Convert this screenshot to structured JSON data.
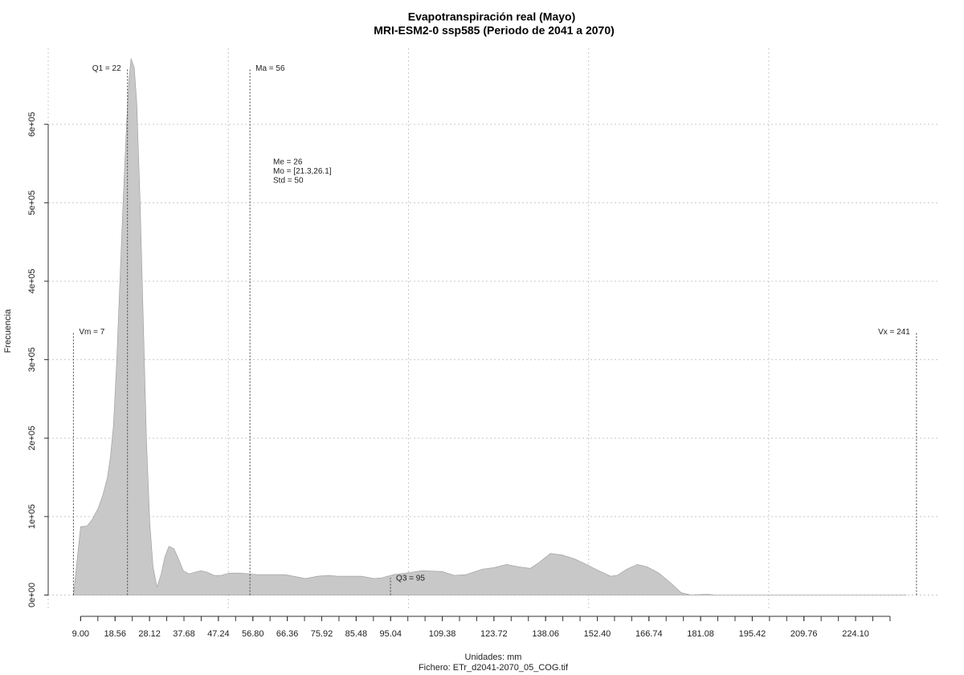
{
  "chart_data": {
    "type": "area",
    "title": "Evapotranspiración real (Mayo)",
    "subtitle": "MRI-ESM2-0 ssp585 (Periodo de 2041 a 2070)",
    "xlabel": "Unidades: mm",
    "caption": "Fichero: ETr_d2041-2070_05_COG.tif",
    "ylabel": "Frecuencia",
    "color": "#c8c8c8",
    "x": [
      7,
      9,
      10.8,
      12.3,
      13.9,
      15.2,
      16.4,
      17.2,
      18.1,
      19.0,
      19.9,
      20.8,
      21.7,
      22.4,
      23.0,
      23.9,
      24.6,
      25.5,
      26.4,
      27.3,
      28.2,
      29.1,
      30.2,
      31.3,
      32.4,
      33.5,
      34.9,
      36.2,
      37.5,
      39.1,
      40.7,
      42.4,
      44.2,
      46.0,
      48.0,
      50.2,
      53.6,
      58.1,
      65.8,
      69.2,
      71.4,
      74.8,
      77.7,
      80.3,
      87.0,
      90.4,
      92.6,
      95.9,
      99.3,
      103.7,
      109.3,
      112.7,
      116.0,
      120.5,
      123.8,
      127.2,
      130.5,
      133.8,
      136.1,
      139.4,
      142.7,
      146.1,
      149.4,
      152.8,
      156.1,
      157.9,
      160.6,
      163.5,
      166.2,
      169.5,
      172.9,
      175.7,
      178.4,
      182.9,
      185.1,
      238.2
    ],
    "values": [
      0,
      87000,
      88000,
      97000,
      111000,
      128000,
      149000,
      174000,
      215000,
      297000,
      400000,
      503000,
      595000,
      656000,
      684000,
      672000,
      626000,
      503000,
      349000,
      195000,
      92000,
      36000,
      10000,
      26000,
      49000,
      62000,
      59000,
      46000,
      31000,
      27000,
      29000,
      31000,
      29000,
      25000,
      25000,
      28000,
      28000,
      26000,
      26000,
      23000,
      21000,
      24000,
      25000,
      24000,
      24000,
      21000,
      22000,
      26000,
      28000,
      31000,
      30000,
      25000,
      26000,
      33000,
      35000,
      39000,
      36000,
      34000,
      41000,
      53000,
      51000,
      46000,
      39000,
      31000,
      24000,
      25000,
      33000,
      39000,
      36000,
      28000,
      15000,
      3000,
      0,
      1000,
      0,
      0
    ],
    "xlim": [
      0,
      247.5
    ],
    "ylim": [
      -20000,
      697000
    ],
    "yticks": [
      {
        "value": 0,
        "label": "0e+00"
      },
      {
        "value": 100000,
        "label": "1e+05"
      },
      {
        "value": 200000,
        "label": "2e+05"
      },
      {
        "value": 300000,
        "label": "3e+05"
      },
      {
        "value": 400000,
        "label": "4e+05"
      },
      {
        "value": 500000,
        "label": "5e+05"
      },
      {
        "value": 600000,
        "label": "6e+05"
      }
    ],
    "xticks": [
      {
        "value": 9.0,
        "label": "9.00"
      },
      {
        "value": 18.56,
        "label": "18.56"
      },
      {
        "value": 28.12,
        "label": "28.12"
      },
      {
        "value": 37.68,
        "label": "37.68"
      },
      {
        "value": 47.24,
        "label": "47.24"
      },
      {
        "value": 56.8,
        "label": "56.80"
      },
      {
        "value": 66.36,
        "label": "66.36"
      },
      {
        "value": 75.92,
        "label": "75.92"
      },
      {
        "value": 85.48,
        "label": "85.48"
      },
      {
        "value": 95.04,
        "label": "95.04"
      },
      {
        "value": 109.38,
        "label": "109.38"
      },
      {
        "value": 123.72,
        "label": "123.72"
      },
      {
        "value": 138.06,
        "label": "138.06"
      },
      {
        "value": 152.4,
        "label": "152.40"
      },
      {
        "value": 166.74,
        "label": "166.74"
      },
      {
        "value": 181.08,
        "label": "181.08"
      },
      {
        "value": 195.42,
        "label": "195.42"
      },
      {
        "value": 209.76,
        "label": "209.76"
      },
      {
        "value": 224.1,
        "label": "224.10"
      }
    ],
    "xminor_ticks": [
      9.0,
      13.78,
      18.56,
      23.34,
      28.12,
      32.9,
      37.68,
      42.46,
      47.24,
      52.02,
      56.8,
      61.58,
      66.36,
      71.14,
      75.92,
      80.7,
      85.48,
      90.26,
      95.04,
      99.82,
      104.6,
      109.38,
      114.16,
      118.94,
      123.72,
      128.5,
      133.28,
      138.06,
      142.84,
      147.62,
      152.4,
      157.18,
      161.96,
      166.74,
      171.52,
      176.3,
      181.08,
      185.86,
      190.64,
      195.42,
      200.2,
      204.98,
      209.76,
      214.54,
      219.32,
      224.1,
      228.88,
      233.66
    ],
    "grid": true,
    "xgrid": [
      0,
      50,
      100,
      150,
      200
    ],
    "annotations": [
      {
        "label": "Vm = 7",
        "x": 7,
        "top": 336000
      },
      {
        "label": "Q1 = 22",
        "x": 22,
        "top": 672000
      },
      {
        "label": "Ma = 56",
        "x": 56,
        "top": 672000
      },
      {
        "label": "Q3 = 95",
        "x": 95,
        "top": 22000
      },
      {
        "label": "Vx = 241",
        "x": 241,
        "top": 336000
      }
    ],
    "stats": [
      "Me = 26",
      "Mo = [21.3,26.1]",
      "Std = 50"
    ]
  }
}
